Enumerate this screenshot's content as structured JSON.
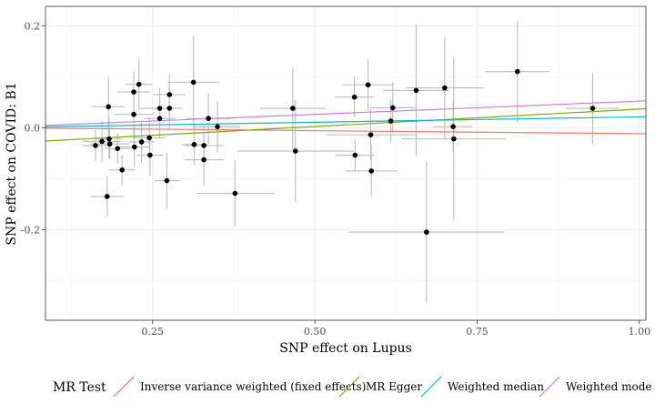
{
  "chart_data": {
    "type": "scatter",
    "title": "",
    "xlabel": "SNP effect on Lupus",
    "ylabel": "SNP effect on COVID: B1",
    "xlim": [
      0.085,
      1.01
    ],
    "ylim": [
      -0.378,
      0.238
    ],
    "x_ticks": [
      0.25,
      0.5,
      0.75,
      1.0
    ],
    "x_tick_labels": [
      "0.25",
      "0.50",
      "0.75",
      "1.00"
    ],
    "y_ticks": [
      -0.2,
      0.0,
      0.2
    ],
    "y_tick_labels": [
      "-0.2",
      "0.0",
      "0.2"
    ],
    "grid": true,
    "legend_position": "bottom",
    "legend_title": "MR Test",
    "points": [
      {
        "x": 0.162,
        "y": -0.035,
        "xerr": 0.02,
        "yerr": 0.03
      },
      {
        "x": 0.172,
        "y": -0.027,
        "xerr": 0.03,
        "yerr": 0.04
      },
      {
        "x": 0.18,
        "y": -0.135,
        "xerr": 0.025,
        "yerr": 0.04
      },
      {
        "x": 0.182,
        "y": 0.041,
        "xerr": 0.025,
        "yerr": 0.06
      },
      {
        "x": 0.183,
        "y": -0.022,
        "xerr": 0.02,
        "yerr": 0.04
      },
      {
        "x": 0.184,
        "y": -0.032,
        "xerr": 0.03,
        "yerr": 0.03
      },
      {
        "x": 0.196,
        "y": -0.041,
        "xerr": 0.02,
        "yerr": 0.03
      },
      {
        "x": 0.203,
        "y": -0.083,
        "xerr": 0.02,
        "yerr": 0.03
      },
      {
        "x": 0.221,
        "y": 0.026,
        "xerr": 0.03,
        "yerr": 0.05
      },
      {
        "x": 0.221,
        "y": 0.07,
        "xerr": 0.025,
        "yerr": 0.04
      },
      {
        "x": 0.222,
        "y": -0.038,
        "xerr": 0.025,
        "yerr": 0.04
      },
      {
        "x": 0.229,
        "y": 0.085,
        "xerr": 0.02,
        "yerr": 0.05
      },
      {
        "x": 0.233,
        "y": -0.028,
        "xerr": 0.02,
        "yerr": 0.04
      },
      {
        "x": 0.245,
        "y": -0.02,
        "xerr": 0.025,
        "yerr": 0.04
      },
      {
        "x": 0.246,
        "y": -0.054,
        "xerr": 0.02,
        "yerr": 0.04
      },
      {
        "x": 0.261,
        "y": 0.038,
        "xerr": 0.03,
        "yerr": 0.04
      },
      {
        "x": 0.261,
        "y": 0.018,
        "xerr": 0.025,
        "yerr": 0.04
      },
      {
        "x": 0.272,
        "y": -0.104,
        "xerr": 0.02,
        "yerr": 0.055
      },
      {
        "x": 0.276,
        "y": 0.065,
        "xerr": 0.025,
        "yerr": 0.04
      },
      {
        "x": 0.276,
        "y": 0.038,
        "xerr": 0.02,
        "yerr": 0.04
      },
      {
        "x": 0.313,
        "y": 0.089,
        "xerr": 0.04,
        "yerr": 0.09
      },
      {
        "x": 0.314,
        "y": -0.033,
        "xerr": 0.02,
        "yerr": 0.04
      },
      {
        "x": 0.329,
        "y": -0.035,
        "xerr": 0.03,
        "yerr": 0.04
      },
      {
        "x": 0.329,
        "y": -0.063,
        "xerr": 0.03,
        "yerr": 0.05
      },
      {
        "x": 0.336,
        "y": 0.018,
        "xerr": 0.035,
        "yerr": 0.05
      },
      {
        "x": 0.35,
        "y": 0.002,
        "xerr": 0.035,
        "yerr": 0.05
      },
      {
        "x": 0.377,
        "y": -0.129,
        "xerr": 0.06,
        "yerr": 0.065
      },
      {
        "x": 0.466,
        "y": 0.038,
        "xerr": 0.05,
        "yerr": 0.08
      },
      {
        "x": 0.47,
        "y": -0.046,
        "xerr": 0.09,
        "yerr": 0.1
      },
      {
        "x": 0.561,
        "y": 0.06,
        "xerr": 0.03,
        "yerr": 0.04
      },
      {
        "x": 0.562,
        "y": -0.054,
        "xerr": 0.03,
        "yerr": 0.03
      },
      {
        "x": 0.582,
        "y": 0.084,
        "xerr": 0.04,
        "yerr": 0.05
      },
      {
        "x": 0.586,
        "y": -0.014,
        "xerr": 0.07,
        "yerr": 0.05
      },
      {
        "x": 0.587,
        "y": -0.085,
        "xerr": 0.04,
        "yerr": 0.05
      },
      {
        "x": 0.617,
        "y": 0.013,
        "xerr": 0.03,
        "yerr": 0.04
      },
      {
        "x": 0.62,
        "y": 0.039,
        "xerr": 0.035,
        "yerr": 0.05
      },
      {
        "x": 0.656,
        "y": 0.073,
        "xerr": 0.05,
        "yerr": 0.13
      },
      {
        "x": 0.672,
        "y": -0.205,
        "xerr": 0.12,
        "yerr": 0.14
      },
      {
        "x": 0.7,
        "y": 0.078,
        "xerr": 0.06,
        "yerr": 0.1
      },
      {
        "x": 0.713,
        "y": 0.002,
        "xerr": 0.03,
        "yerr": 0.05
      },
      {
        "x": 0.714,
        "y": -0.022,
        "xerr": 0.08,
        "yerr": 0.16
      },
      {
        "x": 0.812,
        "y": 0.11,
        "xerr": 0.05,
        "yerr": 0.1
      },
      {
        "x": 0.928,
        "y": 0.038,
        "xerr": 0.04,
        "yerr": 0.07
      }
    ],
    "series": [
      {
        "name": "Inverse variance weighted (fixed effects)",
        "type": "line",
        "intercept": 0.0,
        "slope": -0.0118,
        "color": "#F8766D"
      },
      {
        "name": "MR Egger",
        "type": "line",
        "intercept": -0.0321,
        "slope": 0.0686,
        "color": "#7CAE00"
      },
      {
        "name": "Weighted median",
        "type": "line",
        "intercept": 0.0,
        "slope": 0.0212,
        "color": "#00BFC4"
      },
      {
        "name": "Weighted mode",
        "type": "line",
        "intercept": 0.0,
        "slope": 0.0521,
        "color": "#C77CFF"
      }
    ]
  }
}
